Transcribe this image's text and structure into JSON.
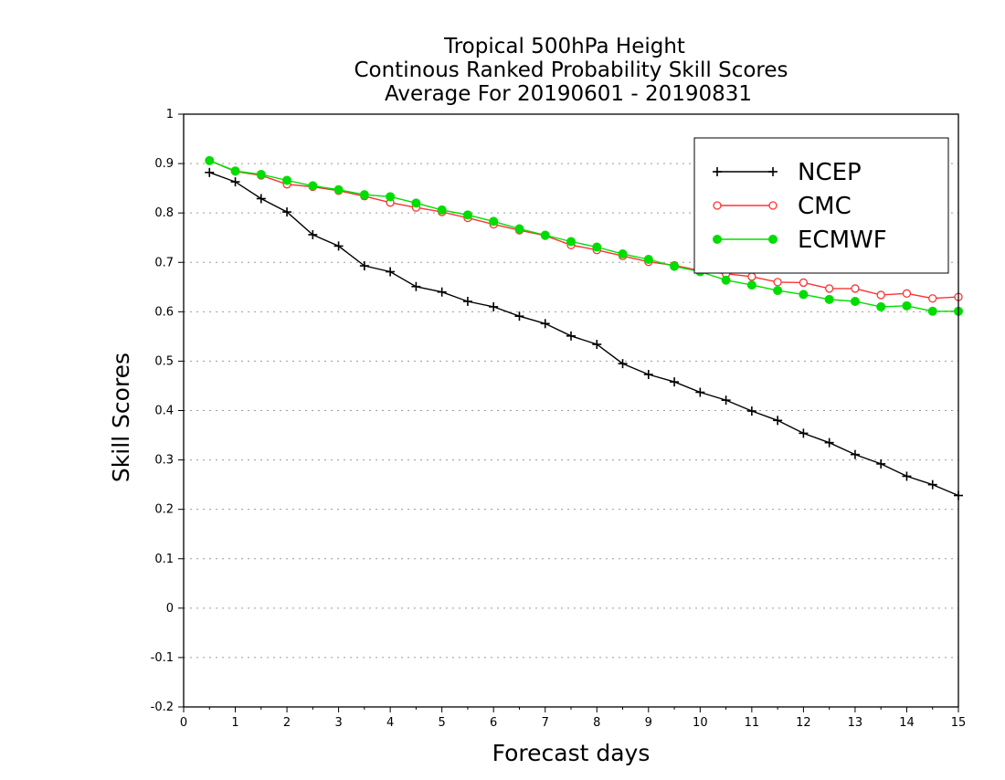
{
  "chart_data": {
    "type": "line",
    "title_lines": [
      "Tropical 500hPa Height",
      "Continous Ranked Probability Skill Scores",
      "Average For 20190601 - 20190831"
    ],
    "xlabel": "Forecast days",
    "ylabel": "Skill Scores",
    "xlim": [
      0,
      15
    ],
    "ylim": [
      -0.2,
      1
    ],
    "x_ticks": [
      0,
      1,
      2,
      3,
      4,
      5,
      6,
      7,
      8,
      9,
      10,
      11,
      12,
      13,
      14,
      15
    ],
    "y_ticks": [
      -0.2,
      -0.1,
      0,
      0.1,
      0.2,
      0.3,
      0.4,
      0.5,
      0.6,
      0.7,
      0.8,
      0.9,
      1
    ],
    "y_tick_labels": [
      "-0.2",
      "-0.1",
      "0",
      "0.1",
      "0.2",
      "0.3",
      "0.4",
      "0.5",
      "0.6",
      "0.7",
      "0.8",
      "0.9",
      "1"
    ],
    "grid": "horizontal dotted",
    "legend_position": "top-right",
    "x": [
      0.5,
      1,
      1.5,
      2,
      2.5,
      3,
      3.5,
      4,
      4.5,
      5,
      5.5,
      6,
      6.5,
      7,
      7.5,
      8,
      8.5,
      9,
      9.5,
      10,
      10.5,
      11,
      11.5,
      12,
      12.5,
      13,
      13.5,
      14,
      14.5,
      15
    ],
    "series": [
      {
        "name": "NCEP",
        "color": "#000000",
        "marker": "plus",
        "values": [
          0.882,
          0.863,
          0.829,
          0.802,
          0.756,
          0.733,
          0.693,
          0.681,
          0.651,
          0.64,
          0.621,
          0.61,
          0.591,
          0.576,
          0.551,
          0.534,
          0.495,
          0.473,
          0.458,
          0.437,
          0.421,
          0.399,
          0.38,
          0.354,
          0.335,
          0.311,
          0.292,
          0.267,
          0.25,
          0.228
        ]
      },
      {
        "name": "CMC",
        "color": "#ff3333",
        "marker": "open-circle",
        "values": [
          0.906,
          0.884,
          0.876,
          0.858,
          0.853,
          0.845,
          0.834,
          0.821,
          0.811,
          0.802,
          0.79,
          0.777,
          0.765,
          0.754,
          0.735,
          0.725,
          0.713,
          0.701,
          0.694,
          0.683,
          0.677,
          0.671,
          0.66,
          0.659,
          0.647,
          0.647,
          0.634,
          0.637,
          0.627,
          0.63
        ]
      },
      {
        "name": "ECMWF",
        "color": "#00dd00",
        "marker": "filled-circle",
        "values": [
          0.906,
          0.885,
          0.878,
          0.866,
          0.855,
          0.847,
          0.837,
          0.833,
          0.82,
          0.806,
          0.796,
          0.783,
          0.768,
          0.755,
          0.742,
          0.731,
          0.717,
          0.706,
          0.692,
          0.681,
          0.664,
          0.654,
          0.643,
          0.635,
          0.625,
          0.621,
          0.61,
          0.612,
          0.601,
          0.601
        ]
      }
    ]
  }
}
